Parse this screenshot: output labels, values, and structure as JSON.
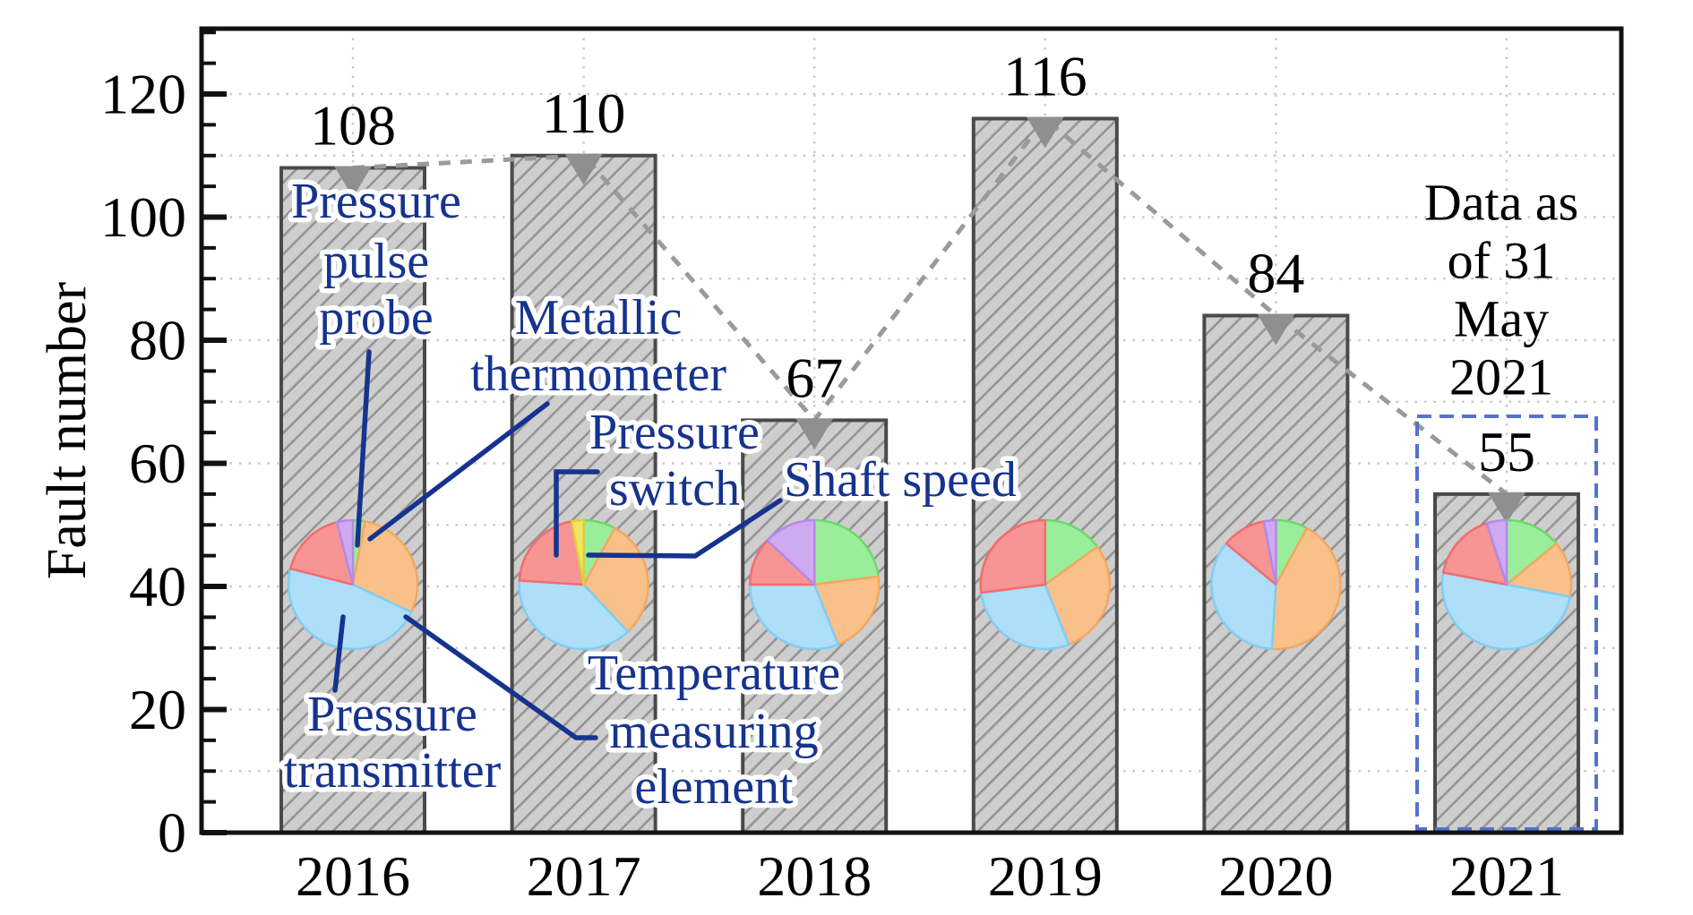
{
  "chart_data": {
    "type": "bar",
    "title": "",
    "xlabel": "",
    "ylabel": "Fault number",
    "categories": [
      "2016",
      "2017",
      "2018",
      "2019",
      "2020",
      "2021"
    ],
    "values": [
      108,
      110,
      67,
      116,
      84,
      55
    ],
    "yticks": [
      0,
      20,
      40,
      60,
      80,
      100,
      120
    ],
    "ylim": [
      0,
      130
    ],
    "grid": "dotted horizontal every 10 and dotted vertical at each bar center",
    "trend_line": "gray dashed line joining bar tops with gray down-triangle markers",
    "annotation": {
      "lines": [
        "Data as",
        "of 31",
        "May",
        "2021"
      ]
    },
    "highlight_box_year": "2021",
    "components": [
      {
        "label": "Metallic thermometer",
        "color": "#9aed9a",
        "edge": "#6cd96c"
      },
      {
        "label": "Temperature measuring element",
        "color": "#f9c189",
        "edge": "#f5a75f"
      },
      {
        "label": "Pressure transmitter",
        "color": "#aedef8",
        "edge": "#7fcdf4"
      },
      {
        "label": "Pressure switch",
        "color": "#f79595",
        "edge": "#f26d6d"
      },
      {
        "label": "Shaft speed",
        "color": "#f2e565",
        "edge": "#e0cf3a"
      },
      {
        "label": "Pressure pulse probe",
        "color": "#cdaaf2",
        "edge": "#b788e8"
      }
    ],
    "pies": [
      {
        "year": "2016",
        "slices": [
          {
            "component": "Metallic thermometer",
            "pct": 3
          },
          {
            "component": "Temperature measuring element",
            "pct": 29
          },
          {
            "component": "Pressure transmitter",
            "pct": 47
          },
          {
            "component": "Pressure switch",
            "pct": 17
          },
          {
            "component": "Pressure pulse probe",
            "pct": 4
          }
        ]
      },
      {
        "year": "2017",
        "slices": [
          {
            "component": "Metallic thermometer",
            "pct": 8
          },
          {
            "component": "Temperature measuring element",
            "pct": 30
          },
          {
            "component": "Pressure transmitter",
            "pct": 38
          },
          {
            "component": "Pressure switch",
            "pct": 21
          },
          {
            "component": "Shaft speed",
            "pct": 3
          }
        ]
      },
      {
        "year": "2018",
        "slices": [
          {
            "component": "Metallic thermometer",
            "pct": 23
          },
          {
            "component": "Temperature measuring element",
            "pct": 21
          },
          {
            "component": "Pressure transmitter",
            "pct": 31
          },
          {
            "component": "Pressure switch",
            "pct": 12
          },
          {
            "component": "Pressure pulse probe",
            "pct": 13
          }
        ]
      },
      {
        "year": "2019",
        "slices": [
          {
            "component": "Metallic thermometer",
            "pct": 15
          },
          {
            "component": "Temperature measuring element",
            "pct": 29
          },
          {
            "component": "Pressure transmitter",
            "pct": 29
          },
          {
            "component": "Pressure switch",
            "pct": 27
          }
        ]
      },
      {
        "year": "2020",
        "slices": [
          {
            "component": "Metallic thermometer",
            "pct": 8
          },
          {
            "component": "Temperature measuring element",
            "pct": 43
          },
          {
            "component": "Pressure transmitter",
            "pct": 35
          },
          {
            "component": "Pressure switch",
            "pct": 11
          },
          {
            "component": "Pressure pulse probe",
            "pct": 3
          }
        ]
      },
      {
        "year": "2021",
        "slices": [
          {
            "component": "Metallic thermometer",
            "pct": 14
          },
          {
            "component": "Temperature measuring element",
            "pct": 14
          },
          {
            "component": "Pressure transmitter",
            "pct": 50
          },
          {
            "component": "Pressure switch",
            "pct": 17
          },
          {
            "component": "Pressure pulse probe",
            "pct": 5
          }
        ]
      }
    ],
    "callouts": [
      {
        "id": "pressure-pulse-probe",
        "lines": [
          "Pressure",
          "pulse",
          "probe"
        ],
        "points_to": "Pressure pulse probe"
      },
      {
        "id": "metallic-thermometer",
        "lines": [
          "Metallic",
          "thermometer"
        ],
        "points_to": "Metallic thermometer"
      },
      {
        "id": "pressure-switch",
        "lines": [
          "Pressure",
          "switch"
        ],
        "points_to": "Pressure switch"
      },
      {
        "id": "shaft-speed",
        "lines": [
          "Shaft speed"
        ],
        "points_to": "Shaft speed"
      },
      {
        "id": "temperature-measuring-element",
        "lines": [
          "Temperature",
          "measuring",
          "element"
        ],
        "points_to": "Temperature measuring element"
      },
      {
        "id": "pressure-transmitter",
        "lines": [
          "Pressure",
          "transmitter"
        ],
        "points_to": "Pressure transmitter"
      }
    ],
    "colors": {
      "bar_fill": "#cecece",
      "bar_hatch": "#959595",
      "bar_border": "#4a4a4a",
      "trend": "#9a9a9a",
      "marker": "#8f8f8f",
      "grid": "#c9c9c9",
      "frame": "#111111",
      "callout_text": "#16338e",
      "leader": "#16338e",
      "highlight_box": "#5273cf"
    }
  }
}
